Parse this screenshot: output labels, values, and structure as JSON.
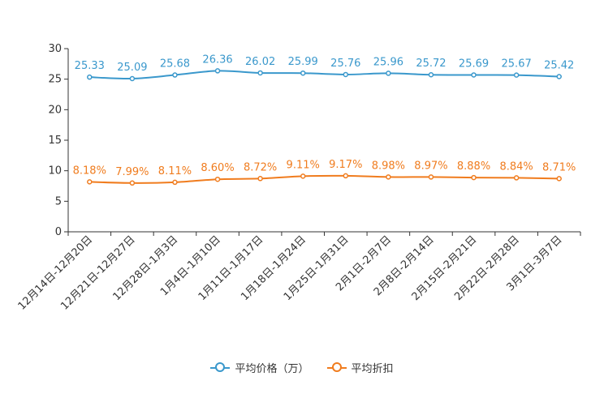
{
  "chart_data": {
    "type": "line",
    "categories": [
      "12月14日-12月20日",
      "12月21日-12月27日",
      "12月28日-1月3日",
      "1月4日-1月10日",
      "1月11日-1月17日",
      "1月18日-1月24日",
      "1月25日-1月31日",
      "2月1日-2月7日",
      "2月8日-2月14日",
      "2月15日-2月21日",
      "2月22日-2月28日",
      "3月1日-3月7日"
    ],
    "ylim": [
      0,
      30
    ],
    "yticks": [
      0,
      5,
      10,
      15,
      20,
      25,
      30
    ],
    "series": [
      {
        "name": "平均价格（万）",
        "color": "#3a98cc",
        "values": [
          25.33,
          25.09,
          25.68,
          26.36,
          26.02,
          25.99,
          25.76,
          25.96,
          25.72,
          25.69,
          25.67,
          25.42
        ],
        "labels": [
          "25.33",
          "25.09",
          "25.68",
          "26.36",
          "26.02",
          "25.99",
          "25.76",
          "25.96",
          "25.72",
          "25.69",
          "25.67",
          "25.42"
        ]
      },
      {
        "name": "平均折扣",
        "color": "#f07c1e",
        "values": [
          8.18,
          7.99,
          8.11,
          8.6,
          8.72,
          9.11,
          9.17,
          8.98,
          8.97,
          8.88,
          8.84,
          8.71
        ],
        "labels": [
          "8.18%",
          "7.99%",
          "8.11%",
          "8.60%",
          "8.72%",
          "9.11%",
          "9.17%",
          "8.98%",
          "8.97%",
          "8.88%",
          "8.84%",
          "8.71%"
        ]
      }
    ]
  }
}
